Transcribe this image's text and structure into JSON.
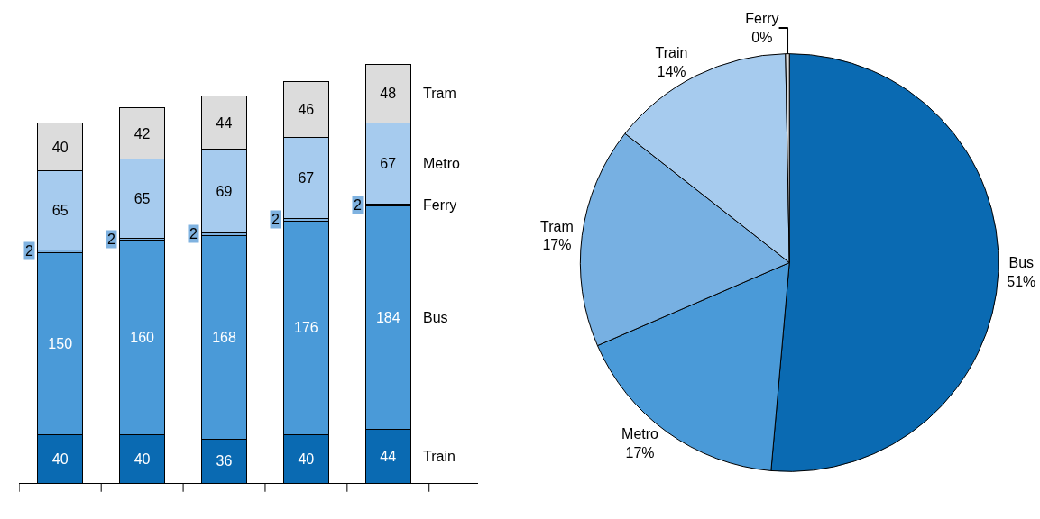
{
  "chart_data": [
    {
      "type": "bar",
      "stacked": true,
      "categories": [
        null,
        null,
        null,
        null,
        null
      ],
      "data_labels": true,
      "legend": "right",
      "series": [
        {
          "name": "Train",
          "color": "#0a6ab2",
          "values": [
            40,
            40,
            36,
            40,
            44
          ]
        },
        {
          "name": "Bus",
          "color": "#4a9ad8",
          "values": [
            150,
            160,
            168,
            176,
            184
          ]
        },
        {
          "name": "Ferry",
          "color": "#7fb2e0",
          "values": [
            2,
            2,
            2,
            2,
            2
          ]
        },
        {
          "name": "Metro",
          "color": "#a6cbee",
          "values": [
            65,
            65,
            69,
            67,
            67
          ]
        },
        {
          "name": "Tram",
          "color": "#dcdcdc",
          "values": [
            40,
            42,
            44,
            46,
            48
          ]
        }
      ]
    },
    {
      "type": "pie",
      "categories": [
        "Bus",
        "Metro",
        "Tram",
        "Train",
        "Ferry"
      ],
      "values": [
        51.4,
        17.1,
        17.1,
        14.1,
        0.3
      ],
      "value_labels": [
        "51%",
        "17%",
        "17%",
        "14%",
        "0%"
      ],
      "colors": [
        "#0a6ab2",
        "#4a9ad8",
        "#77b0e2",
        "#a6cbee",
        "#dcdcdc"
      ]
    }
  ]
}
